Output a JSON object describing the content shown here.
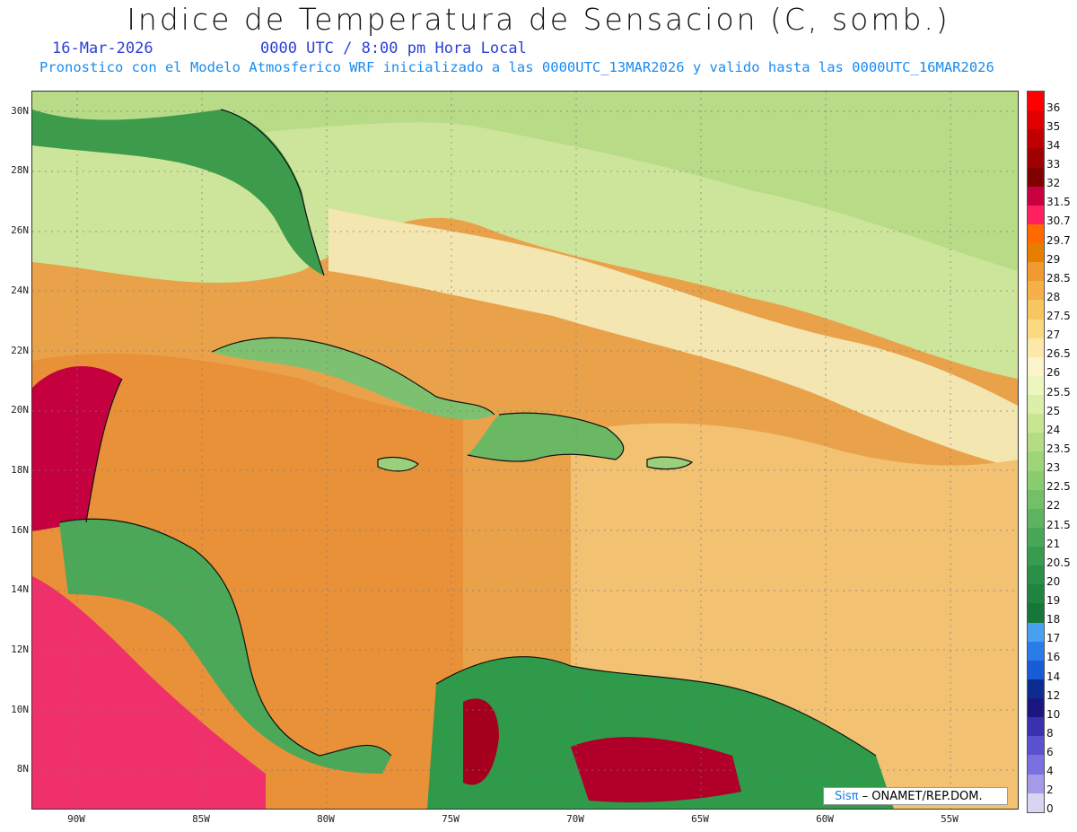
{
  "title": "Indice de Temperatura de Sensacion (C, somb.)",
  "date": "16-Mar-2026",
  "time": "0000 UTC / 8:00 pm Hora Local",
  "subtitle": "Pronostico con el Modelo Atmosferico WRF inicializado a las 0000UTC_13MAR2026 y valido hasta las  0000UTC_16MAR2026",
  "lat_labels": [
    "30N",
    "28N",
    "26N",
    "24N",
    "22N",
    "20N",
    "18N",
    "16N",
    "14N",
    "12N",
    "10N",
    "8N"
  ],
  "lon_labels": [
    "90W",
    "85W",
    "80W",
    "75W",
    "70W",
    "65W",
    "60W",
    "55W"
  ],
  "colorbar": {
    "labels": [
      "36",
      "35",
      "34",
      "33",
      "32",
      "31.5",
      "30.7",
      "29.7",
      "29",
      "28.5",
      "28",
      "27.5",
      "27",
      "26.5",
      "26",
      "25.5",
      "25",
      "24",
      "23.5",
      "23",
      "22.5",
      "22",
      "21.5",
      "21",
      "20.5",
      "20",
      "19",
      "18",
      "17",
      "16",
      "14",
      "12",
      "10",
      "8",
      "6",
      "4",
      "2",
      "0"
    ],
    "colors": [
      "#ff0000",
      "#e00000",
      "#c00000",
      "#a00000",
      "#800000",
      "#c80040",
      "#ff2060",
      "#ff6a00",
      "#e67e00",
      "#f09a30",
      "#f5b04a",
      "#f8c660",
      "#fad980",
      "#fce8a8",
      "#fbf4cc",
      "#eef6c0",
      "#dcefa8",
      "#c8e690",
      "#b4dc80",
      "#a0d478",
      "#8ccc70",
      "#74c068",
      "#5cb460",
      "#48a858",
      "#389c50",
      "#2a9048",
      "#1e8440",
      "#157838",
      "#48a0f0",
      "#2a7ce8",
      "#1a5cd8",
      "#0c2c90",
      "#1a1880",
      "#3a30b0",
      "#5a50d0",
      "#7a70e0",
      "#a49ae8",
      "#d8d4f4"
    ]
  },
  "credit": {
    "sis": "Sisπ",
    "text": "– ONAMET/REP.DOM."
  }
}
